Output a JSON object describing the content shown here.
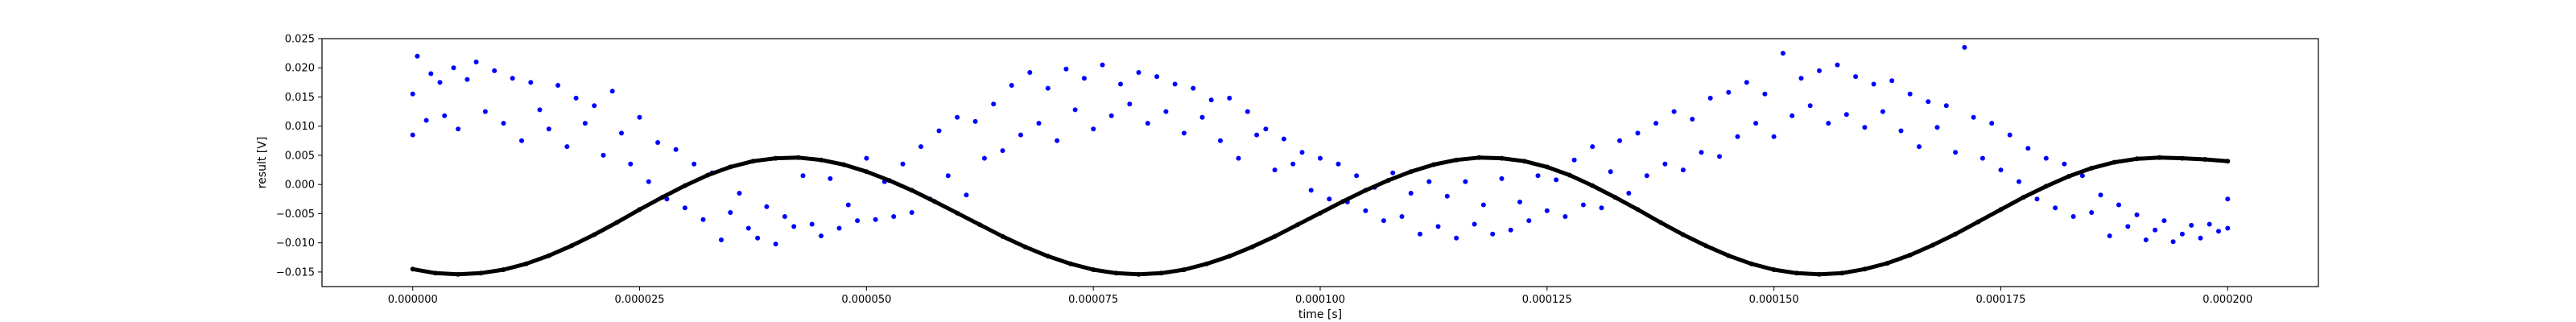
{
  "chart_data": {
    "type": "scatter",
    "title": "",
    "xlabel": "time [s]",
    "ylabel": "result [V]",
    "xlim": [
      -1e-05,
      0.00021
    ],
    "ylim": [
      -0.0175,
      0.025
    ],
    "x_ticks": [
      0.0,
      2.5e-05,
      5e-05,
      7.5e-05,
      0.0001,
      0.000125,
      0.00015,
      0.000175,
      0.0002
    ],
    "x_tick_labels": [
      "0.000000",
      "0.000025",
      "0.000050",
      "0.000075",
      "0.000100",
      "0.000125",
      "0.000150",
      "0.000175",
      "0.000200"
    ],
    "y_ticks": [
      -0.015,
      -0.01,
      -0.005,
      0.0,
      0.005,
      0.01,
      0.015,
      0.02,
      0.025
    ],
    "y_tick_labels": [
      "−0.015",
      "−0.010",
      "−0.005",
      "0.000",
      "0.005",
      "0.010",
      "0.015",
      "0.020",
      "0.025"
    ],
    "grid": false,
    "series": [
      {
        "color": "#0000ff",
        "marker": "dot",
        "points": [
          [
            0.0,
            0.0155
          ],
          [
            0.0,
            0.0085
          ],
          [
            5e-07,
            0.022
          ],
          [
            1.5e-06,
            0.011
          ],
          [
            2e-06,
            0.019
          ],
          [
            3e-06,
            0.0175
          ],
          [
            3.5e-06,
            0.0118
          ],
          [
            4.5e-06,
            0.02
          ],
          [
            5e-06,
            0.0095
          ],
          [
            6e-06,
            0.018
          ],
          [
            7e-06,
            0.021
          ],
          [
            8e-06,
            0.0125
          ],
          [
            9e-06,
            0.0195
          ],
          [
            1e-05,
            0.0105
          ],
          [
            1.1e-05,
            0.0182
          ],
          [
            1.2e-05,
            0.0075
          ],
          [
            1.3e-05,
            0.0175
          ],
          [
            1.4e-05,
            0.0128
          ],
          [
            1.5e-05,
            0.0095
          ],
          [
            1.6e-05,
            0.017
          ],
          [
            1.7e-05,
            0.0065
          ],
          [
            1.8e-05,
            0.0148
          ],
          [
            1.9e-05,
            0.0105
          ],
          [
            2e-05,
            0.0135
          ],
          [
            2.1e-05,
            0.005
          ],
          [
            2.2e-05,
            0.016
          ],
          [
            2.3e-05,
            0.0088
          ],
          [
            2.4e-05,
            0.0035
          ],
          [
            2.5e-05,
            0.0115
          ],
          [
            2.6e-05,
            0.0005
          ],
          [
            2.7e-05,
            0.0072
          ],
          [
            2.8e-05,
            -0.0025
          ],
          [
            2.9e-05,
            0.006
          ],
          [
            3e-05,
            -0.004
          ],
          [
            3.1e-05,
            0.0035
          ],
          [
            3.2e-05,
            -0.006
          ],
          [
            3.3e-05,
            0.002
          ],
          [
            3.4e-05,
            -0.0095
          ],
          [
            3.5e-05,
            -0.0048
          ],
          [
            3.6e-05,
            -0.0015
          ],
          [
            3.7e-05,
            -0.0075
          ],
          [
            3.8e-05,
            -0.0092
          ],
          [
            3.9e-05,
            -0.0038
          ],
          [
            4e-05,
            -0.0102
          ],
          [
            4.1e-05,
            -0.0055
          ],
          [
            4.2e-05,
            -0.0072
          ],
          [
            4.3e-05,
            0.0015
          ],
          [
            4.4e-05,
            -0.0068
          ],
          [
            4.5e-05,
            -0.0088
          ],
          [
            4.6e-05,
            0.001
          ],
          [
            4.7e-05,
            -0.0075
          ],
          [
            4.8e-05,
            -0.0035
          ],
          [
            4.9e-05,
            -0.0062
          ],
          [
            5e-05,
            0.0045
          ],
          [
            5.1e-05,
            -0.006
          ],
          [
            5.2e-05,
            0.0005
          ],
          [
            5.3e-05,
            -0.0055
          ],
          [
            5.4e-05,
            0.0035
          ],
          [
            5.5e-05,
            -0.0048
          ],
          [
            5.6e-05,
            0.0065
          ],
          [
            5.7e-05,
            -0.0025
          ],
          [
            5.8e-05,
            0.0092
          ],
          [
            5.9e-05,
            0.0015
          ],
          [
            6e-05,
            0.0115
          ],
          [
            6.1e-05,
            -0.0018
          ],
          [
            6.2e-05,
            0.0108
          ],
          [
            6.3e-05,
            0.0045
          ],
          [
            6.4e-05,
            0.0138
          ],
          [
            6.5e-05,
            0.0058
          ],
          [
            6.6e-05,
            0.017
          ],
          [
            6.7e-05,
            0.0085
          ],
          [
            6.8e-05,
            0.0192
          ],
          [
            6.9e-05,
            0.0105
          ],
          [
            7e-05,
            0.0165
          ],
          [
            7.1e-05,
            0.0075
          ],
          [
            7.2e-05,
            0.0198
          ],
          [
            7.3e-05,
            0.0128
          ],
          [
            7.4e-05,
            0.0182
          ],
          [
            7.5e-05,
            0.0095
          ],
          [
            7.6e-05,
            0.0205
          ],
          [
            7.7e-05,
            0.0118
          ],
          [
            7.8e-05,
            0.0172
          ],
          [
            7.9e-05,
            0.0138
          ],
          [
            8e-05,
            0.0192
          ],
          [
            8.1e-05,
            0.0105
          ],
          [
            8.2e-05,
            0.0185
          ],
          [
            8.3e-05,
            0.0125
          ],
          [
            8.4e-05,
            0.0172
          ],
          [
            8.5e-05,
            0.0088
          ],
          [
            8.6e-05,
            0.0165
          ],
          [
            8.7e-05,
            0.0115
          ],
          [
            8.8e-05,
            0.0145
          ],
          [
            8.9e-05,
            0.0075
          ],
          [
            9e-05,
            0.0148
          ],
          [
            9.1e-05,
            0.0045
          ],
          [
            9.2e-05,
            0.0125
          ],
          [
            9.3e-05,
            0.0085
          ],
          [
            9.4e-05,
            0.0095
          ],
          [
            9.5e-05,
            0.0025
          ],
          [
            9.6e-05,
            0.0078
          ],
          [
            9.7e-05,
            0.0035
          ],
          [
            9.8e-05,
            0.0055
          ],
          [
            9.9e-05,
            -0.001
          ],
          [
            0.0001,
            0.0045
          ],
          [
            0.000101,
            -0.0025
          ],
          [
            0.000102,
            0.0035
          ],
          [
            0.000103,
            -0.003
          ],
          [
            0.000104,
            0.0015
          ],
          [
            0.000105,
            -0.0045
          ],
          [
            0.000106,
            -0.0005
          ],
          [
            0.000107,
            -0.0062
          ],
          [
            0.000108,
            0.002
          ],
          [
            0.000109,
            -0.0055
          ],
          [
            0.00011,
            -0.0015
          ],
          [
            0.000111,
            -0.0085
          ],
          [
            0.000112,
            0.0005
          ],
          [
            0.000113,
            -0.0072
          ],
          [
            0.000114,
            -0.002
          ],
          [
            0.000115,
            -0.0092
          ],
          [
            0.000116,
            0.0005
          ],
          [
            0.000117,
            -0.0068
          ],
          [
            0.000118,
            -0.0035
          ],
          [
            0.000119,
            -0.0085
          ],
          [
            0.00012,
            0.001
          ],
          [
            0.000121,
            -0.0078
          ],
          [
            0.000122,
            -0.003
          ],
          [
            0.000123,
            -0.0062
          ],
          [
            0.000124,
            0.0015
          ],
          [
            0.000125,
            -0.0045
          ],
          [
            0.000126,
            0.0008
          ],
          [
            0.000127,
            -0.0055
          ],
          [
            0.000128,
            0.0042
          ],
          [
            0.000129,
            -0.0035
          ],
          [
            0.00013,
            0.0065
          ],
          [
            0.000131,
            -0.004
          ],
          [
            0.000132,
            0.0022
          ],
          [
            0.000133,
            0.0075
          ],
          [
            0.000134,
            -0.0015
          ],
          [
            0.000135,
            0.0088
          ],
          [
            0.000136,
            0.0015
          ],
          [
            0.000137,
            0.0105
          ],
          [
            0.000138,
            0.0035
          ],
          [
            0.000139,
            0.0125
          ],
          [
            0.00014,
            0.0025
          ],
          [
            0.000141,
            0.0112
          ],
          [
            0.000142,
            0.0055
          ],
          [
            0.000143,
            0.0148
          ],
          [
            0.000144,
            0.0048
          ],
          [
            0.000145,
            0.0158
          ],
          [
            0.000146,
            0.0082
          ],
          [
            0.000147,
            0.0175
          ],
          [
            0.000148,
            0.0105
          ],
          [
            0.000149,
            0.0155
          ],
          [
            0.00015,
            0.0082
          ],
          [
            0.000151,
            0.0225
          ],
          [
            0.000152,
            0.0118
          ],
          [
            0.000153,
            0.0182
          ],
          [
            0.000154,
            0.0135
          ],
          [
            0.000155,
            0.0195
          ],
          [
            0.000156,
            0.0105
          ],
          [
            0.000157,
            0.0205
          ],
          [
            0.000158,
            0.012
          ],
          [
            0.000159,
            0.0185
          ],
          [
            0.00016,
            0.0098
          ],
          [
            0.000161,
            0.0172
          ],
          [
            0.000162,
            0.0125
          ],
          [
            0.000163,
            0.0178
          ],
          [
            0.000164,
            0.0092
          ],
          [
            0.000165,
            0.0155
          ],
          [
            0.000166,
            0.0065
          ],
          [
            0.000167,
            0.0142
          ],
          [
            0.000168,
            0.0098
          ],
          [
            0.000169,
            0.0135
          ],
          [
            0.00017,
            0.0055
          ],
          [
            0.000171,
            0.0235
          ],
          [
            0.000172,
            0.0115
          ],
          [
            0.000173,
            0.0045
          ],
          [
            0.000174,
            0.0105
          ],
          [
            0.000175,
            0.0025
          ],
          [
            0.000176,
            0.0085
          ],
          [
            0.000177,
            0.0005
          ],
          [
            0.000178,
            0.0062
          ],
          [
            0.000179,
            -0.0025
          ],
          [
            0.00018,
            0.0045
          ],
          [
            0.000181,
            -0.004
          ],
          [
            0.000182,
            0.0035
          ],
          [
            0.000183,
            -0.0055
          ],
          [
            0.000184,
            0.0015
          ],
          [
            0.000185,
            -0.0048
          ],
          [
            0.000186,
            -0.0018
          ],
          [
            0.000187,
            -0.0088
          ],
          [
            0.000188,
            -0.0035
          ],
          [
            0.000189,
            -0.0072
          ],
          [
            0.00019,
            -0.0052
          ],
          [
            0.000191,
            -0.0095
          ],
          [
            0.000192,
            -0.0078
          ],
          [
            0.000193,
            -0.0062
          ],
          [
            0.000194,
            -0.0098
          ],
          [
            0.000195,
            -0.0085
          ],
          [
            0.000196,
            -0.007
          ],
          [
            0.000197,
            -0.0092
          ],
          [
            0.000198,
            -0.0068
          ],
          [
            0.000199,
            -0.008
          ],
          [
            0.0002,
            -0.0025
          ],
          [
            0.0002,
            -0.0075
          ]
        ]
      },
      {
        "color": "#000000",
        "marker": "dense-dot-curve",
        "points": [
          [
            0.0,
            -0.0145
          ],
          [
            2.5e-06,
            -0.0152
          ],
          [
            5e-06,
            -0.0154
          ],
          [
            7.5e-06,
            -0.0152
          ],
          [
            1e-05,
            -0.0146
          ],
          [
            1.25e-05,
            -0.0136
          ],
          [
            1.5e-05,
            -0.0122
          ],
          [
            1.75e-05,
            -0.0105
          ],
          [
            2e-05,
            -0.0086
          ],
          [
            2.25e-05,
            -0.0065
          ],
          [
            2.5e-05,
            -0.0043
          ],
          [
            2.75e-05,
            -0.0022
          ],
          [
            3e-05,
            -0.0002
          ],
          [
            3.25e-05,
            0.0016
          ],
          [
            3.5e-05,
            0.003
          ],
          [
            3.75e-05,
            0.004
          ],
          [
            4e-05,
            0.0045
          ],
          [
            4.25e-05,
            0.0046
          ],
          [
            4.5e-05,
            0.0042
          ],
          [
            4.75e-05,
            0.0034
          ],
          [
            5e-05,
            0.0022
          ],
          [
            5.25e-05,
            0.0007
          ],
          [
            5.5e-05,
            -0.001
          ],
          [
            5.75e-05,
            -0.0029
          ],
          [
            6e-05,
            -0.0049
          ],
          [
            6.25e-05,
            -0.0069
          ],
          [
            6.5e-05,
            -0.0089
          ],
          [
            6.75e-05,
            -0.0107
          ],
          [
            7e-05,
            -0.0123
          ],
          [
            7.25e-05,
            -0.0136
          ],
          [
            7.5e-05,
            -0.0146
          ],
          [
            7.75e-05,
            -0.0152
          ],
          [
            8e-05,
            -0.0154
          ],
          [
            8.25e-05,
            -0.0152
          ],
          [
            8.5e-05,
            -0.0146
          ],
          [
            8.75e-05,
            -0.0136
          ],
          [
            9e-05,
            -0.0123
          ],
          [
            9.25e-05,
            -0.0107
          ],
          [
            9.5e-05,
            -0.0089
          ],
          [
            9.75e-05,
            -0.0069
          ],
          [
            0.0001,
            -0.0049
          ],
          [
            0.0001025,
            -0.0029
          ],
          [
            0.000105,
            -0.001
          ],
          [
            0.0001075,
            0.0007
          ],
          [
            0.00011,
            0.0022
          ],
          [
            0.0001125,
            0.0034
          ],
          [
            0.000115,
            0.0042
          ],
          [
            0.0001175,
            0.0046
          ],
          [
            0.00012,
            0.0045
          ],
          [
            0.0001225,
            0.004
          ],
          [
            0.000125,
            0.003
          ],
          [
            0.0001275,
            0.0016
          ],
          [
            0.00013,
            -0.0002
          ],
          [
            0.0001325,
            -0.0022
          ],
          [
            0.000135,
            -0.0043
          ],
          [
            0.0001375,
            -0.0065
          ],
          [
            0.00014,
            -0.0086
          ],
          [
            0.0001425,
            -0.0105
          ],
          [
            0.000145,
            -0.0122
          ],
          [
            0.0001475,
            -0.0136
          ],
          [
            0.00015,
            -0.0146
          ],
          [
            0.0001525,
            -0.0152
          ],
          [
            0.000155,
            -0.0154
          ],
          [
            0.0001575,
            -0.0152
          ],
          [
            0.00016,
            -0.0145
          ],
          [
            0.0001625,
            -0.0135
          ],
          [
            0.000165,
            -0.0121
          ],
          [
            0.0001675,
            -0.0104
          ],
          [
            0.00017,
            -0.0085
          ],
          [
            0.0001725,
            -0.0064
          ],
          [
            0.000175,
            -0.0043
          ],
          [
            0.0001775,
            -0.0022
          ],
          [
            0.00018,
            -0.0003
          ],
          [
            0.0001825,
            0.0014
          ],
          [
            0.000185,
            0.0028
          ],
          [
            0.0001875,
            0.0038
          ],
          [
            0.00019,
            0.0044
          ],
          [
            0.0001925,
            0.0046
          ],
          [
            0.000195,
            0.0045
          ],
          [
            0.0001975,
            0.0043
          ],
          [
            0.0002,
            0.004
          ]
        ]
      }
    ]
  }
}
